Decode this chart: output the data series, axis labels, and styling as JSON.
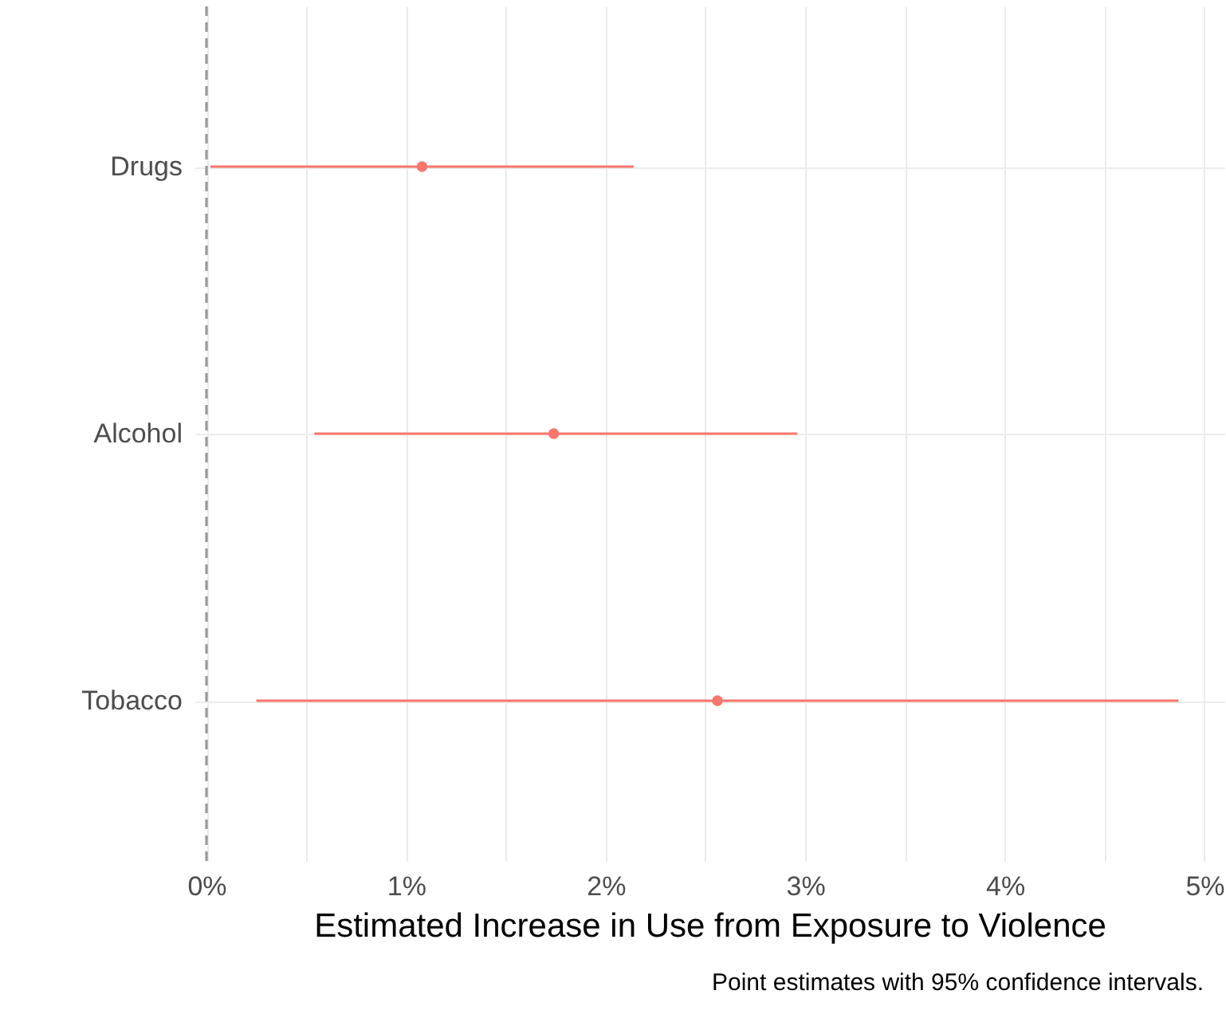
{
  "chart_data": {
    "type": "scatter",
    "orientation": "horizontal",
    "xlabel": "Estimated Increase in Use from Exposure to Violence",
    "annotations": [
      "Point estimates with 95% confidence intervals."
    ],
    "categories": [
      "Drugs",
      "Alcohol",
      "Tobacco"
    ],
    "series": [
      {
        "color": "#f8766d",
        "values": [
          1.08,
          1.74,
          2.56
        ],
        "errors": [
          [
            0.02,
            2.14
          ],
          [
            0.54,
            2.96
          ],
          [
            0.25,
            4.87
          ]
        ]
      }
    ],
    "xlim": [
      -0.06,
      5.1
    ],
    "xticks": [
      {
        "value": 0,
        "label": "0%"
      },
      {
        "value": 0.5,
        "label": null
      },
      {
        "value": 1,
        "label": "1%"
      },
      {
        "value": 1.5,
        "label": null
      },
      {
        "value": 2,
        "label": "2%"
      },
      {
        "value": 2.5,
        "label": null
      },
      {
        "value": 3,
        "label": "3%"
      },
      {
        "value": 3.5,
        "label": null
      },
      {
        "value": 4,
        "label": "4%"
      },
      {
        "value": 4.5,
        "label": null
      },
      {
        "value": 5,
        "label": "5%"
      }
    ],
    "ref_lines": [
      {
        "axis": "x",
        "value": 0,
        "color": "#999999",
        "line_style": "dashed"
      }
    ],
    "grid": true,
    "marker": "circle"
  }
}
